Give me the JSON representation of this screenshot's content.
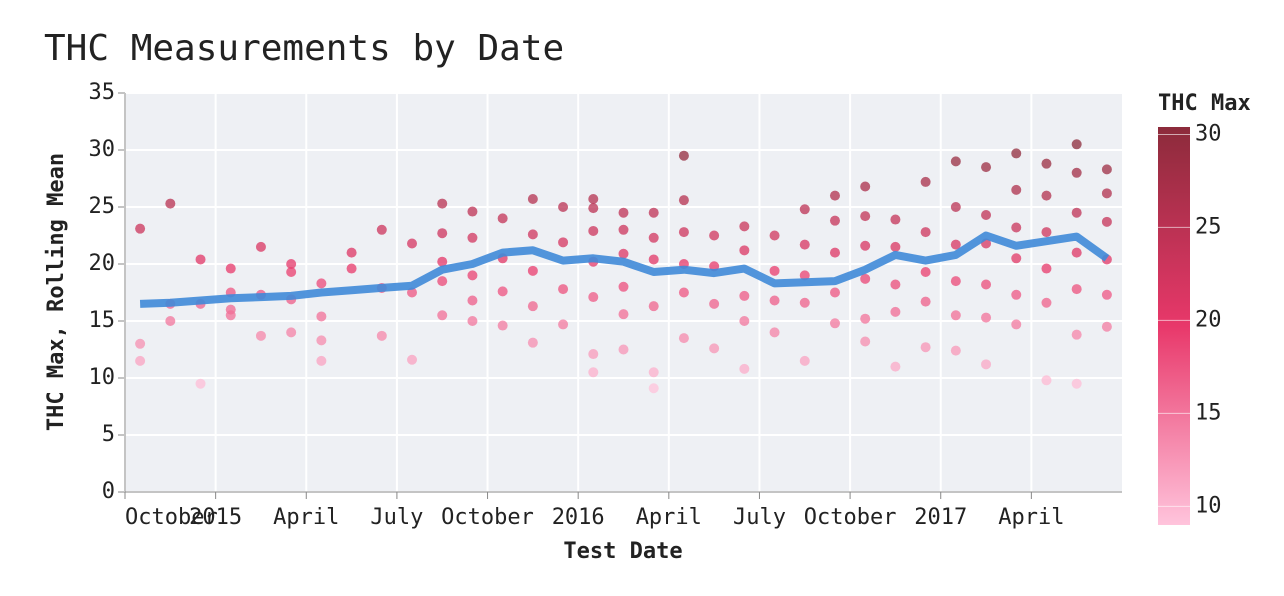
{
  "chart_data": {
    "type": "scatter",
    "title": "THC Measurements by Date",
    "x_label": "Test Date",
    "y_label": "THC Max, Rolling Mean",
    "xlim": [
      "2014-10",
      "2017-07"
    ],
    "xticks": [
      {
        "value": "2014-10",
        "label": "October"
      },
      {
        "value": "2015-01",
        "label": "2015"
      },
      {
        "value": "2015-04",
        "label": "April"
      },
      {
        "value": "2015-07",
        "label": "July"
      },
      {
        "value": "2015-10",
        "label": "October"
      },
      {
        "value": "2016-01",
        "label": "2016"
      },
      {
        "value": "2016-04",
        "label": "April"
      },
      {
        "value": "2016-07",
        "label": "July"
      },
      {
        "value": "2016-10",
        "label": "October"
      },
      {
        "value": "2017-01",
        "label": "2017"
      },
      {
        "value": "2017-04",
        "label": "April"
      }
    ],
    "ylim": [
      0,
      35
    ],
    "yticks": [
      0,
      5,
      10,
      15,
      20,
      25,
      30,
      35
    ],
    "grid": true,
    "color_legend": {
      "title": "THC Max",
      "lim": [
        9,
        30.4
      ],
      "ticks": [
        10,
        15,
        20,
        25,
        30
      ],
      "colors": [
        "#ffc4dc",
        "#e8386a",
        "#8c2b3b"
      ]
    },
    "series": [
      {
        "type": "scatter",
        "x": [
          "2014-10",
          "2014-10",
          "2014-10",
          "2014-11",
          "2014-11",
          "2014-11",
          "2014-12",
          "2014-12",
          "2014-12",
          "2015-01",
          "2015-01",
          "2015-01",
          "2015-01",
          "2015-02",
          "2015-02",
          "2015-02",
          "2015-03",
          "2015-03",
          "2015-03",
          "2015-03",
          "2015-04",
          "2015-04",
          "2015-04",
          "2015-04",
          "2015-05",
          "2015-05",
          "2015-06",
          "2015-06",
          "2015-06",
          "2015-07",
          "2015-07",
          "2015-07",
          "2015-08",
          "2015-08",
          "2015-08",
          "2015-08",
          "2015-08",
          "2015-09",
          "2015-09",
          "2015-09",
          "2015-09",
          "2015-09",
          "2015-10",
          "2015-10",
          "2015-10",
          "2015-10",
          "2015-11",
          "2015-11",
          "2015-11",
          "2015-11",
          "2015-11",
          "2015-12",
          "2015-12",
          "2015-12",
          "2015-12",
          "2016-01",
          "2016-01",
          "2016-01",
          "2016-01",
          "2016-01",
          "2016-01",
          "2016-01",
          "2016-02",
          "2016-02",
          "2016-02",
          "2016-02",
          "2016-02",
          "2016-02",
          "2016-03",
          "2016-03",
          "2016-03",
          "2016-03",
          "2016-03",
          "2016-03",
          "2016-04",
          "2016-04",
          "2016-04",
          "2016-04",
          "2016-04",
          "2016-04",
          "2016-05",
          "2016-05",
          "2016-05",
          "2016-05",
          "2016-06",
          "2016-06",
          "2016-06",
          "2016-06",
          "2016-06",
          "2016-07",
          "2016-07",
          "2016-07",
          "2016-07",
          "2016-08",
          "2016-08",
          "2016-08",
          "2016-08",
          "2016-08",
          "2016-09",
          "2016-09",
          "2016-09",
          "2016-09",
          "2016-09",
          "2016-10",
          "2016-10",
          "2016-10",
          "2016-10",
          "2016-10",
          "2016-10",
          "2016-11",
          "2016-11",
          "2016-11",
          "2016-11",
          "2016-11",
          "2016-12",
          "2016-12",
          "2016-12",
          "2016-12",
          "2016-12",
          "2017-01",
          "2017-01",
          "2017-01",
          "2017-01",
          "2017-01",
          "2017-01",
          "2017-02",
          "2017-02",
          "2017-02",
          "2017-02",
          "2017-02",
          "2017-02",
          "2017-03",
          "2017-03",
          "2017-03",
          "2017-03",
          "2017-03",
          "2017-03",
          "2017-04",
          "2017-04",
          "2017-04",
          "2017-04",
          "2017-04",
          "2017-04",
          "2017-05",
          "2017-05",
          "2017-05",
          "2017-05",
          "2017-05",
          "2017-05",
          "2017-05",
          "2017-06",
          "2017-06",
          "2017-06",
          "2017-06",
          "2017-06",
          "2017-06"
        ],
        "values": [
          23.1,
          13,
          11.5,
          25.3,
          16.5,
          15,
          16.5,
          9.5,
          20.4,
          19.6,
          17.5,
          16,
          15.5,
          13.7,
          21.5,
          17.3,
          20,
          19.3,
          16.9,
          14,
          18.3,
          15.4,
          11.5,
          13.3,
          21,
          19.6,
          13.7,
          23,
          17.9,
          21.8,
          17.5,
          11.6,
          20.2,
          25.3,
          22.7,
          15.5,
          18.5,
          24.6,
          22.3,
          19,
          16.8,
          15,
          24,
          20.5,
          17.6,
          14.6,
          25.7,
          22.6,
          19.4,
          16.3,
          13.1,
          25,
          21.9,
          17.8,
          14.7,
          25.7,
          24.9,
          22.9,
          20.2,
          17.1,
          12.1,
          10.5,
          24.5,
          23,
          20.9,
          18,
          15.6,
          12.5,
          24.5,
          22.3,
          20.4,
          16.3,
          9.1,
          10.5,
          25.6,
          22.8,
          20,
          17.5,
          13.5,
          29.5,
          22.5,
          19.8,
          16.5,
          12.6,
          23.3,
          21.2,
          17.2,
          15,
          10.8,
          22.5,
          19.4,
          16.8,
          14,
          24.8,
          21.7,
          19,
          16.6,
          11.5,
          26,
          23.8,
          21,
          17.5,
          14.8,
          26.8,
          24.2,
          21.6,
          18.7,
          15.2,
          13.2,
          23.9,
          21.5,
          18.2,
          15.8,
          11,
          27.2,
          22.8,
          19.3,
          16.7,
          12.7,
          29,
          25,
          21.7,
          18.5,
          15.5,
          12.4,
          28.5,
          24.3,
          21.8,
          18.2,
          15.3,
          11.2,
          29.7,
          26.5,
          23.2,
          20.5,
          17.3,
          14.7,
          28.8,
          26,
          22.8,
          19.6,
          16.6,
          9.8,
          30.5,
          28,
          24.5,
          21,
          17.8,
          13.8,
          9.5,
          28.3,
          26.2,
          23.7,
          20.4,
          17.3,
          14.5
        ]
      },
      {
        "type": "line",
        "color": "#3f8ad8",
        "x": [
          "2014-10",
          "2014-11",
          "2014-12",
          "2015-01",
          "2015-02",
          "2015-03",
          "2015-04",
          "2015-05",
          "2015-06",
          "2015-07",
          "2015-08",
          "2015-09",
          "2015-10",
          "2015-11",
          "2015-12",
          "2016-01",
          "2016-02",
          "2016-03",
          "2016-04",
          "2016-05",
          "2016-06",
          "2016-07",
          "2016-08",
          "2016-09",
          "2016-10",
          "2016-11",
          "2016-12",
          "2017-01",
          "2017-02",
          "2017-03",
          "2017-04",
          "2017-05",
          "2017-06"
        ],
        "values": [
          16.5,
          16.6,
          16.8,
          17,
          17.1,
          17.2,
          17.5,
          17.7,
          17.9,
          18.1,
          19.5,
          20,
          21,
          21.2,
          20.3,
          20.5,
          20.2,
          19.3,
          19.5,
          19.2,
          19.6,
          18.3,
          18.4,
          18.5,
          19.5,
          20.8,
          20.3,
          20.8,
          22.5,
          21.6,
          22,
          22.4,
          20.5
        ]
      }
    ]
  }
}
